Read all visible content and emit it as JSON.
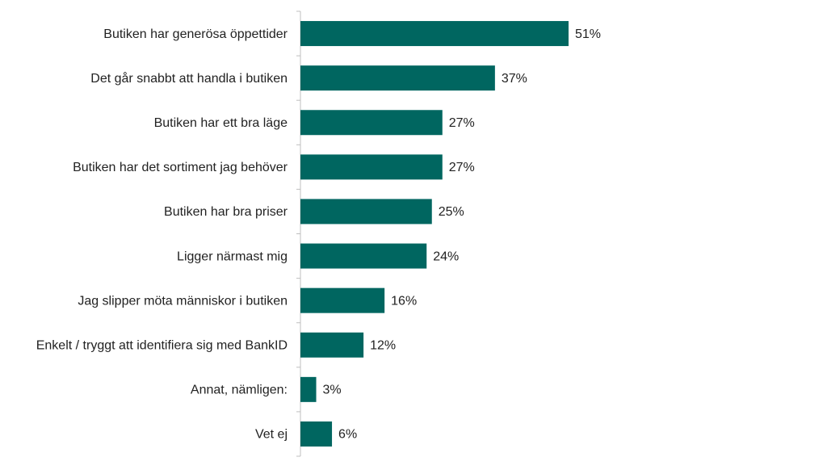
{
  "chart_data": {
    "type": "barh",
    "categories": [
      "Butiken har generösa öppettider",
      "Det går snabbt att handla i butiken",
      "Butiken har ett bra läge",
      "Butiken har det sortiment jag behöver",
      "Butiken har bra priser",
      "Ligger närmast mig",
      "Jag slipper möta människor i butiken",
      "Enkelt / tryggt att identifiera sig med BankID",
      "Annat, nämligen:",
      "Vet ej"
    ],
    "values": [
      51,
      37,
      27,
      27,
      25,
      24,
      16,
      12,
      3,
      6
    ],
    "value_labels": [
      "51%",
      "37%",
      "27%",
      "27%",
      "25%",
      "24%",
      "16%",
      "12%",
      "3%",
      "6%"
    ],
    "color": "#006660"
  }
}
